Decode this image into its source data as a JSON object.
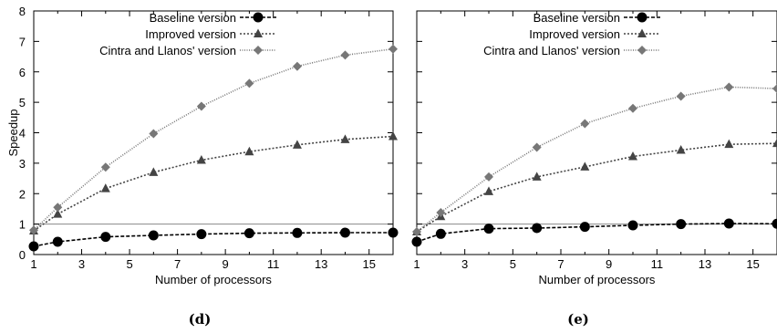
{
  "chart_data": [
    {
      "type": "line",
      "panel": "(d)",
      "xlabel": "Number of processors",
      "ylabel": "Speedup",
      "xlim": [
        1,
        16
      ],
      "ylim": [
        0,
        8
      ],
      "xticks": [
        1,
        3,
        5,
        7,
        9,
        11,
        13,
        15
      ],
      "yticks": [
        0,
        1,
        2,
        3,
        4,
        5,
        6,
        7,
        8
      ],
      "reference_line": 1,
      "legend_position": "top-right",
      "series": [
        {
          "name": "Baseline version",
          "marker": "circle",
          "dash": "4 2",
          "color": "#000000",
          "x": [
            1,
            2,
            4,
            6,
            8,
            10,
            12,
            14,
            16
          ],
          "y": [
            0.27,
            0.42,
            0.58,
            0.63,
            0.67,
            0.7,
            0.71,
            0.72,
            0.72
          ]
        },
        {
          "name": "Improved version",
          "marker": "triangle",
          "dash": "2 2",
          "color": "#444444",
          "x": [
            1,
            2,
            4,
            6,
            8,
            10,
            12,
            14,
            16
          ],
          "y": [
            0.78,
            1.33,
            2.17,
            2.7,
            3.1,
            3.38,
            3.6,
            3.78,
            3.88
          ]
        },
        {
          "name": "Cintra and Llanos' version",
          "marker": "diamond",
          "dash": "1 1.5",
          "color": "#777777",
          "x": [
            1,
            2,
            4,
            6,
            8,
            10,
            12,
            14,
            16
          ],
          "y": [
            0.8,
            1.55,
            2.87,
            3.97,
            4.87,
            5.62,
            6.18,
            6.55,
            6.75
          ]
        }
      ]
    },
    {
      "type": "line",
      "panel": "(e)",
      "xlabel": "Number of processors",
      "ylabel": "",
      "xlim": [
        1,
        16
      ],
      "ylim": [
        0,
        8
      ],
      "xticks": [
        1,
        3,
        5,
        7,
        9,
        11,
        13,
        15
      ],
      "yticks": [],
      "reference_line": 1,
      "legend_position": "top-right",
      "series": [
        {
          "name": "Baseline version",
          "marker": "circle",
          "dash": "4 2",
          "color": "#000000",
          "x": [
            1,
            2,
            4,
            6,
            8,
            10,
            12,
            14,
            16
          ],
          "y": [
            0.42,
            0.68,
            0.85,
            0.87,
            0.91,
            0.96,
            1.0,
            1.02,
            1.01
          ]
        },
        {
          "name": "Improved version",
          "marker": "triangle",
          "dash": "2 2",
          "color": "#444444",
          "x": [
            1,
            2,
            4,
            6,
            8,
            10,
            12,
            14,
            16
          ],
          "y": [
            0.75,
            1.25,
            2.07,
            2.55,
            2.88,
            3.22,
            3.43,
            3.62,
            3.65
          ]
        },
        {
          "name": "Cintra and Llanos' version",
          "marker": "diamond",
          "dash": "1 1.5",
          "color": "#777777",
          "x": [
            1,
            2,
            4,
            6,
            8,
            10,
            12,
            14,
            16
          ],
          "y": [
            0.75,
            1.38,
            2.55,
            3.52,
            4.3,
            4.8,
            5.2,
            5.5,
            5.45
          ]
        }
      ]
    }
  ],
  "captions": [
    "(d)",
    "(e)"
  ]
}
